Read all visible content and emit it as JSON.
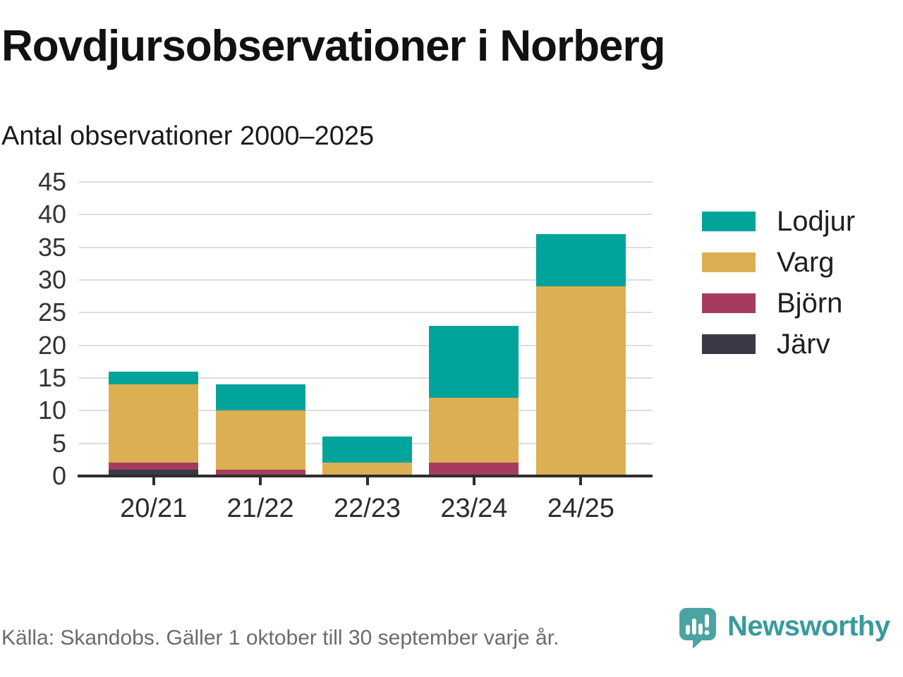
{
  "header": {
    "title": "Rovdjursobservationer i Norberg",
    "subtitle": "Antal observationer 2000–2025"
  },
  "footer": {
    "source": "Källa: Skandobs. Gäller 1 oktober till 30 september varje år."
  },
  "brand": {
    "name": "Newsworthy",
    "logo_icon": "speech-bubble-bar-chart-icon",
    "logo_color": "#4ba3a3",
    "text_color": "#399a9c"
  },
  "colors": {
    "grid": "#dcdcdc",
    "axis": "#2d2d2d",
    "title_text": "#111111",
    "axis_text": "#333333",
    "footer_text": "#6b6b6b"
  },
  "chart_data": {
    "type": "bar",
    "stacked": true,
    "title": "Rovdjursobservationer i Norberg",
    "subtitle": "Antal observationer 2000–2025",
    "xlabel": "",
    "ylabel": "",
    "categories": [
      "20/21",
      "21/22",
      "22/23",
      "23/24",
      "24/25"
    ],
    "series": [
      {
        "name": "Lodjur",
        "color": "#00a49a",
        "values": [
          2,
          4,
          4,
          11,
          8
        ]
      },
      {
        "name": "Varg",
        "color": "#dcaf53",
        "values": [
          12,
          9,
          2,
          10,
          29
        ]
      },
      {
        "name": "Björn",
        "color": "#a53c5e",
        "values": [
          1,
          1,
          0,
          2,
          0
        ]
      },
      {
        "name": "Järv",
        "color": "#3c3947",
        "values": [
          1,
          0,
          0,
          0,
          0
        ]
      }
    ],
    "stack_order_bottom_to_top": [
      "Järv",
      "Björn",
      "Varg",
      "Lodjur"
    ],
    "totals": [
      16,
      14,
      6,
      23,
      37
    ],
    "ylim": [
      0,
      45
    ],
    "ytick_step": 5,
    "grid": true,
    "legend_position": "right"
  }
}
